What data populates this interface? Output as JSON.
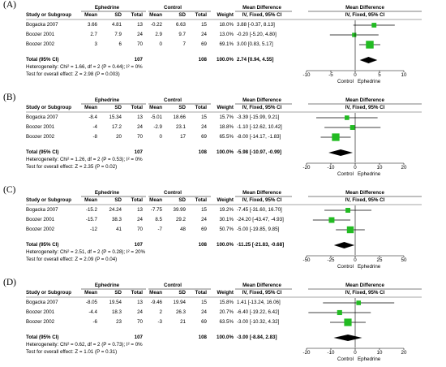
{
  "headers": {
    "study": "Study or Subgroup",
    "group1": "Ephedrine",
    "group2": "Control",
    "mean": "Mean",
    "sd": "SD",
    "total": "Total",
    "weight": "Weight",
    "md": "Mean Difference",
    "method": "IV, Fixed, 95% CI",
    "xleft": "Control",
    "xright": "Ephedrine"
  },
  "colors": {
    "box": "#22bb22",
    "diamond": "#000000",
    "header_line": "#555555"
  },
  "chart_data": [
    {
      "label": "(A)",
      "type": "forest",
      "xlim": [
        -10,
        10
      ],
      "ticks": [
        "-10",
        "-5",
        "0",
        "5",
        "10"
      ],
      "rows": [
        {
          "study": "Bogacka 2007",
          "m1": "3.66",
          "sd1": "4.81",
          "n1": "13",
          "m2": "-0.22",
          "sd2": "6.63",
          "n2": "15",
          "w": "18.0%",
          "ci": "3.88 [-0.37, 8.13]",
          "md": 3.88,
          "lo": -0.37,
          "hi": 8.13
        },
        {
          "study": "Boozer 2001",
          "m1": "2.7",
          "sd1": "7.9",
          "n1": "24",
          "m2": "2.9",
          "sd2": "9.7",
          "n2": "24",
          "w": "13.0%",
          "ci": "-0.20 [-5.20, 4.80]",
          "md": -0.2,
          "lo": -5.2,
          "hi": 4.8
        },
        {
          "study": "Boozer 2002",
          "m1": "3",
          "sd1": "6",
          "n1": "70",
          "m2": "0",
          "sd2": "7",
          "n2": "69",
          "w": "69.1%",
          "ci": "3.00 [0.83, 5.17]",
          "md": 3.0,
          "lo": 0.83,
          "hi": 5.17
        }
      ],
      "total": {
        "label": "Total (95% CI)",
        "n1": "107",
        "n2": "108",
        "w": "100.0%",
        "ci": "2.74 [0.94, 4.55]",
        "md": 2.74,
        "lo": 0.94,
        "hi": 4.55
      },
      "heterogeneity": "Heterogeneity: Chi² = 1.66, df = 2 (P = 0.44); I² = 0%",
      "overall": "Test for overall effect: Z = 2.98 (P = 0.003)"
    },
    {
      "label": "(B)",
      "type": "forest",
      "xlim": [
        -20,
        20
      ],
      "ticks": [
        "-20",
        "-10",
        "0",
        "10",
        "20"
      ],
      "rows": [
        {
          "study": "Bogacka 2007",
          "m1": "-8.4",
          "sd1": "15.34",
          "n1": "13",
          "m2": "-5.01",
          "sd2": "18.66",
          "n2": "15",
          "w": "15.7%",
          "ci": "-3.39 [-15.99, 9.21]",
          "md": -3.39,
          "lo": -15.99,
          "hi": 9.21
        },
        {
          "study": "Boozer 2001",
          "m1": "-4",
          "sd1": "17.2",
          "n1": "24",
          "m2": "-2.9",
          "sd2": "23.1",
          "n2": "24",
          "w": "18.8%",
          "ci": "-1.10 [-12.62, 10.42]",
          "md": -1.1,
          "lo": -12.62,
          "hi": 10.42
        },
        {
          "study": "Boozer 2002",
          "m1": "-8",
          "sd1": "20",
          "n1": "70",
          "m2": "0",
          "sd2": "17",
          "n2": "69",
          "w": "65.5%",
          "ci": "-8.00 [-14.17, -1.83]",
          "md": -8.0,
          "lo": -14.17,
          "hi": -1.83
        }
      ],
      "total": {
        "label": "Total (95% CI)",
        "n1": "107",
        "n2": "108",
        "w": "100.0%",
        "ci": "-5.98 [-10.97, -0.99]",
        "md": -5.98,
        "lo": -10.97,
        "hi": -0.99
      },
      "heterogeneity": "Heterogeneity: Chi² = 1.26, df = 2 (P = 0.53); I² = 0%",
      "overall": "Test for overall effect: Z = 2.35 (P = 0.02)"
    },
    {
      "label": "(C)",
      "type": "forest",
      "xlim": [
        -50,
        50
      ],
      "ticks": [
        "-50",
        "-25",
        "0",
        "25",
        "50"
      ],
      "rows": [
        {
          "study": "Bogacka 2007",
          "m1": "-15.2",
          "sd1": "24.24",
          "n1": "13",
          "m2": "-7.75",
          "sd2": "39.99",
          "n2": "15",
          "w": "19.2%",
          "ci": "-7.45 [-31.60, 16.70]",
          "md": -7.45,
          "lo": -31.6,
          "hi": 16.7
        },
        {
          "study": "Boozer 2001",
          "m1": "-15.7",
          "sd1": "38.3",
          "n1": "24",
          "m2": "8.5",
          "sd2": "29.2",
          "n2": "24",
          "w": "30.1%",
          "ci": "-24.20 [-43.47, -4.93]",
          "md": -24.2,
          "lo": -43.47,
          "hi": -4.93
        },
        {
          "study": "Boozer 2002",
          "m1": "-12",
          "sd1": "41",
          "n1": "70",
          "m2": "-7",
          "sd2": "48",
          "n2": "69",
          "w": "50.7%",
          "ci": "-5.00 [-19.85, 9.85]",
          "md": -5.0,
          "lo": -19.85,
          "hi": 9.85
        }
      ],
      "total": {
        "label": "Total (95% CI)",
        "n1": "107",
        "n2": "108",
        "w": "100.0%",
        "ci": "-11.25 [-21.83, -0.68]",
        "md": -11.25,
        "lo": -21.83,
        "hi": -0.68
      },
      "heterogeneity": "Heterogeneity: Chi² = 2.51, df = 2 (P = 0.28); I² = 20%",
      "overall": "Test for overall effect: Z = 2.09 (P = 0.04)"
    },
    {
      "label": "(D)",
      "type": "forest",
      "xlim": [
        -20,
        20
      ],
      "ticks": [
        "-20",
        "-10",
        "0",
        "10",
        "20"
      ],
      "rows": [
        {
          "study": "Bogacka 2007",
          "m1": "-8.05",
          "sd1": "19.54",
          "n1": "13",
          "m2": "-9.46",
          "sd2": "19.94",
          "n2": "15",
          "w": "15.8%",
          "ci": "1.41 [-13.24, 16.06]",
          "md": 1.41,
          "lo": -13.24,
          "hi": 16.06
        },
        {
          "study": "Boozer 2001",
          "m1": "-4.4",
          "sd1": "18.3",
          "n1": "24",
          "m2": "2",
          "sd2": "26.3",
          "n2": "24",
          "w": "20.7%",
          "ci": "-6.40 [-19.22, 6.42]",
          "md": -6.4,
          "lo": -19.22,
          "hi": 6.42
        },
        {
          "study": "Boozer 2002",
          "m1": "-6",
          "sd1": "23",
          "n1": "70",
          "m2": "-3",
          "sd2": "21",
          "n2": "69",
          "w": "63.5%",
          "ci": "-3.00 [-10.32, 4.32]",
          "md": -3.0,
          "lo": -10.32,
          "hi": 4.32
        }
      ],
      "total": {
        "label": "Total (95% CI)",
        "n1": "107",
        "n2": "108",
        "w": "100.0%",
        "ci": "-3.00 [-8.84, 2.83]",
        "md": -3.0,
        "lo": -8.84,
        "hi": 2.83
      },
      "heterogeneity": "Heterogeneity: Chi² = 0.62, df = 2 (P = 0.73); I² = 0%",
      "overall": "Test for overall effect: Z = 1.01 (P = 0.31)"
    }
  ]
}
